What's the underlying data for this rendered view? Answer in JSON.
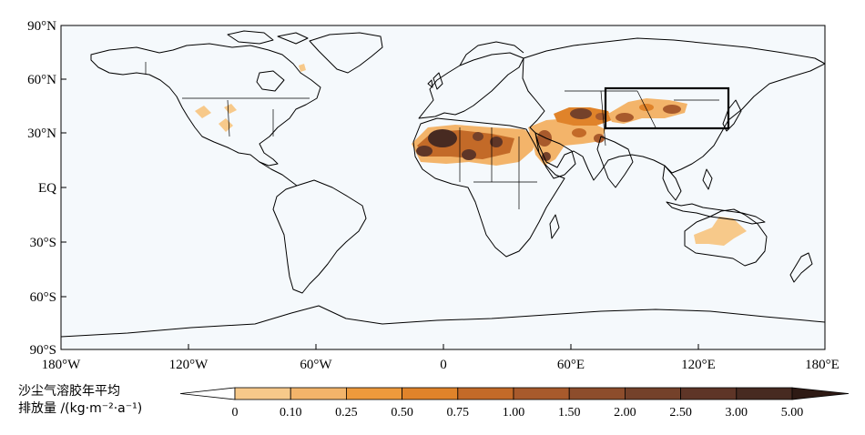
{
  "map": {
    "lat_labels": [
      "90°N",
      "60°N",
      "30°N",
      "EQ",
      "30°S",
      "60°S",
      "90°S"
    ],
    "lon_labels": [
      "180°W",
      "120°W",
      "60°W",
      "0",
      "60°E",
      "120°E",
      "180°E"
    ],
    "ocean_color": "#f5f9fc",
    "land_outline_color": "#000000",
    "region_box": {
      "lon_range": [
        75,
        133
      ],
      "lat_range": [
        33,
        55
      ]
    }
  },
  "legend": {
    "title_line1": "沙尘气溶胶年平均",
    "title_line2": "排放量 /(kg·m⁻²·a⁻¹)",
    "ticks": [
      "0",
      "0.10",
      "0.25",
      "0.50",
      "0.75",
      "1.00",
      "1.50",
      "2.00",
      "2.50",
      "3.00",
      "5.00"
    ],
    "colors": [
      "#f7c98a",
      "#f3b46a",
      "#ee9a3c",
      "#e0832a",
      "#c36a28",
      "#a85a2c",
      "#8d4d2c",
      "#74412a",
      "#5e3527",
      "#472a21"
    ]
  }
}
